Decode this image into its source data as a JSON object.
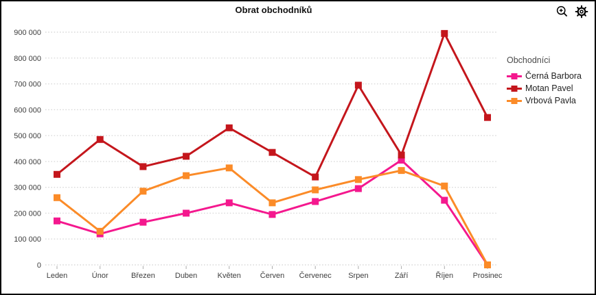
{
  "frame": {
    "background": "#ffffff",
    "border_color": "#000000"
  },
  "toolbar": {
    "icons": [
      {
        "name": "zoom-in-icon"
      },
      {
        "name": "gear-icon"
      }
    ]
  },
  "chart_data": {
    "type": "line",
    "title": "Obrat obchodníků",
    "categories": [
      "Leden",
      "Únor",
      "Březen",
      "Duben",
      "Květen",
      "Červen",
      "Červenec",
      "Srpen",
      "Září",
      "Říjen",
      "Prosinec"
    ],
    "series": [
      {
        "name": "Černá Barbora",
        "color": "#f4188e",
        "values": [
          170000,
          120000,
          165000,
          200000,
          240000,
          195000,
          245000,
          295000,
          405000,
          250000,
          0
        ]
      },
      {
        "name": "Motan Pavel",
        "color": "#c4161c",
        "values": [
          350000,
          485000,
          380000,
          420000,
          530000,
          435000,
          340000,
          695000,
          425000,
          895000,
          570000
        ]
      },
      {
        "name": "Vrbová Pavla",
        "color": "#fb8b28",
        "values": [
          260000,
          130000,
          285000,
          345000,
          375000,
          240000,
          290000,
          330000,
          365000,
          305000,
          0
        ]
      }
    ],
    "ylim": [
      0,
      900000
    ],
    "ytick_step": 100000,
    "ytick_labels": [
      "0",
      "100 000",
      "200 000",
      "300 000",
      "400 000",
      "500 000",
      "600 000",
      "700 000",
      "800 000",
      "900 000"
    ],
    "grid": "horizontal-dotted",
    "legend": {
      "title": "Obchodníci",
      "position": "right"
    },
    "colors": {
      "axis_label": "#3d3d3d",
      "gridline": "#d9d9d9",
      "tick": "#ababab",
      "title": "#111111"
    }
  }
}
